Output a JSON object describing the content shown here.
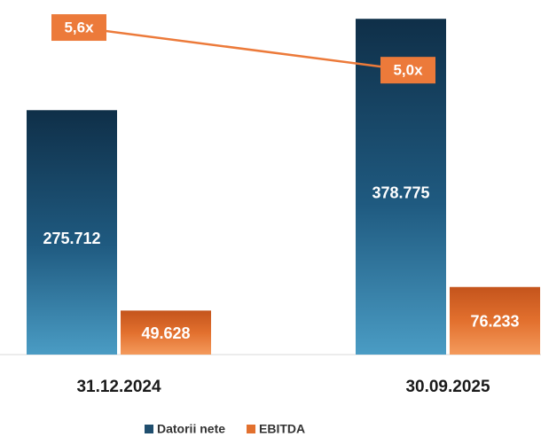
{
  "chart_data": {
    "type": "bar",
    "categories": [
      "31.12.2024",
      "30.09.2025"
    ],
    "series": [
      {
        "name": "Datorii nete",
        "color": "#1f4e6e",
        "values": [
          275712,
          378775
        ],
        "value_labels": [
          "275.712",
          "378.775"
        ]
      },
      {
        "name": "EBITDA",
        "color": "#e2702e",
        "values": [
          49628,
          76233
        ],
        "value_labels": [
          "49.628",
          "76.233"
        ]
      },
      {
        "type": "line",
        "axis": "y2",
        "color": "#ec7a3a",
        "values": [
          5.6,
          5.0
        ],
        "value_labels": [
          "5,6x",
          "5,0x"
        ]
      }
    ],
    "ylim": [
      0,
      385000
    ],
    "y2lim": [
      1,
      5.8
    ],
    "legend": "bottom"
  }
}
